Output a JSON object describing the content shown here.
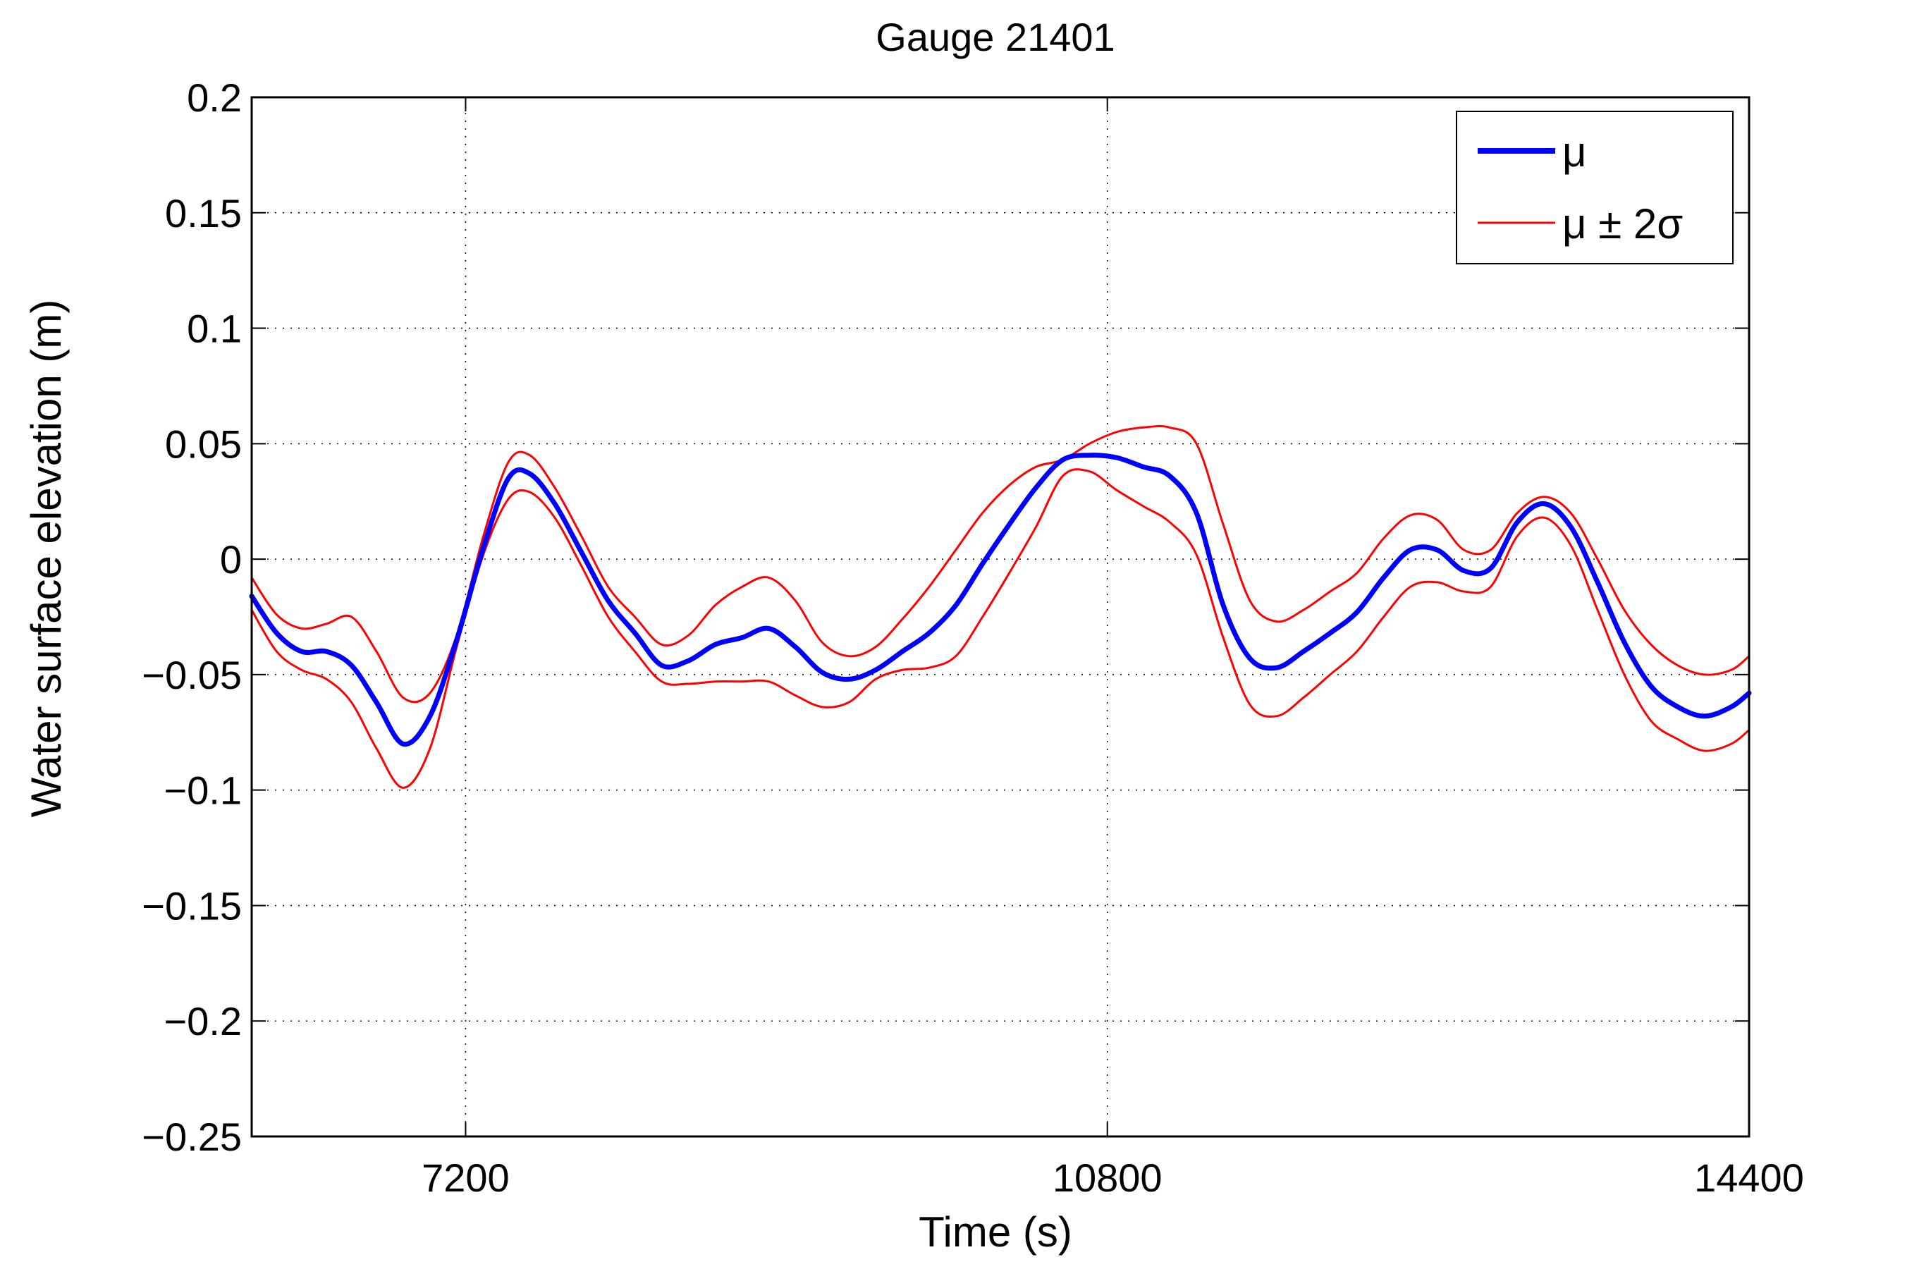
{
  "chart_data": {
    "type": "line",
    "title": "Gauge 21401",
    "xlabel": "Time (s)",
    "ylabel": "Water surface elevation (m)",
    "xlim": [
      6000,
      14400
    ],
    "ylim": [
      -0.25,
      0.2
    ],
    "xticks": [
      7200,
      10800,
      14400
    ],
    "xtick_labels": [
      "7200",
      "10800",
      "14400"
    ],
    "yticks": [
      0.2,
      0.15,
      0.1,
      0.05,
      0,
      -0.05,
      -0.1,
      -0.15,
      -0.2,
      -0.25
    ],
    "ytick_labels": [
      "0.2",
      "0.15",
      "0.1",
      "0.05",
      "0",
      "−0.05",
      "−0.1",
      "−0.15",
      "−0.2",
      "−0.25"
    ],
    "grid": true,
    "legend_position": "top-right",
    "series": [
      {
        "name": "μ",
        "color": "#0000ff",
        "style": "thick",
        "x": [
          6000,
          6140,
          6280,
          6420,
          6560,
          6700,
          6850,
          7000,
          7150,
          7300,
          7440,
          7560,
          7700,
          7850,
          8000,
          8150,
          8300,
          8450,
          8600,
          8750,
          8900,
          9050,
          9200,
          9350,
          9500,
          9650,
          9800,
          9950,
          10100,
          10250,
          10400,
          10550,
          10700,
          10850,
          11000,
          11150,
          11300,
          11450,
          11600,
          11750,
          11900,
          12050,
          12200,
          12350,
          12500,
          12650,
          12800,
          12950,
          13100,
          13250,
          13400,
          13550,
          13700,
          13850,
          14000,
          14150,
          14300,
          14400
        ],
        "y": [
          -0.016,
          -0.032,
          -0.04,
          -0.04,
          -0.046,
          -0.062,
          -0.08,
          -0.068,
          -0.035,
          0.005,
          0.035,
          0.037,
          0.024,
          0.003,
          -0.018,
          -0.032,
          -0.046,
          -0.044,
          -0.037,
          -0.034,
          -0.03,
          -0.038,
          -0.049,
          -0.052,
          -0.048,
          -0.04,
          -0.032,
          -0.02,
          -0.002,
          0.015,
          0.031,
          0.043,
          0.045,
          0.044,
          0.04,
          0.036,
          0.02,
          -0.02,
          -0.043,
          -0.047,
          -0.04,
          -0.032,
          -0.023,
          -0.008,
          0.004,
          0.004,
          -0.005,
          -0.004,
          0.016,
          0.024,
          0.014,
          -0.01,
          -0.036,
          -0.055,
          -0.064,
          -0.068,
          -0.064,
          -0.058
        ]
      },
      {
        "name": "μ ± 2σ",
        "color": "#ff0000",
        "style": "thin",
        "x": [
          6000,
          6140,
          6280,
          6420,
          6560,
          6700,
          6850,
          7000,
          7150,
          7300,
          7440,
          7560,
          7700,
          7850,
          8000,
          8150,
          8300,
          8450,
          8600,
          8750,
          8900,
          9050,
          9200,
          9350,
          9500,
          9650,
          9800,
          9950,
          10100,
          10250,
          10400,
          10550,
          10700,
          10850,
          11000,
          11150,
          11300,
          11450,
          11600,
          11750,
          11900,
          12050,
          12200,
          12350,
          12500,
          12650,
          12800,
          12950,
          13100,
          13250,
          13400,
          13550,
          13700,
          13850,
          14000,
          14150,
          14300,
          14400
        ],
        "y": [
          -0.008,
          -0.024,
          -0.03,
          -0.028,
          -0.025,
          -0.04,
          -0.06,
          -0.058,
          -0.033,
          0.01,
          0.042,
          0.045,
          0.031,
          0.01,
          -0.012,
          -0.025,
          -0.037,
          -0.033,
          -0.02,
          -0.012,
          -0.008,
          -0.018,
          -0.036,
          -0.042,
          -0.038,
          -0.026,
          -0.012,
          0.004,
          0.02,
          0.032,
          0.04,
          0.043,
          0.05,
          0.055,
          0.057,
          0.057,
          0.05,
          0.015,
          -0.018,
          -0.027,
          -0.022,
          -0.014,
          -0.006,
          0.009,
          0.019,
          0.017,
          0.004,
          0.004,
          0.02,
          0.027,
          0.02,
          0.0,
          -0.022,
          -0.037,
          -0.046,
          -0.05,
          -0.048,
          -0.042
        ]
      },
      {
        "name": "",
        "color": "#ff0000",
        "style": "thin",
        "x": [
          6000,
          6140,
          6280,
          6420,
          6560,
          6700,
          6850,
          7000,
          7150,
          7300,
          7440,
          7560,
          7700,
          7850,
          8000,
          8150,
          8300,
          8450,
          8600,
          8750,
          8900,
          9050,
          9200,
          9350,
          9500,
          9650,
          9800,
          9950,
          10100,
          10250,
          10400,
          10550,
          10700,
          10850,
          11000,
          11150,
          11300,
          11450,
          11600,
          11750,
          11900,
          12050,
          12200,
          12350,
          12500,
          12650,
          12800,
          12950,
          13100,
          13250,
          13400,
          13550,
          13700,
          13850,
          14000,
          14150,
          14300,
          14400
        ],
        "y": [
          -0.022,
          -0.04,
          -0.048,
          -0.052,
          -0.062,
          -0.082,
          -0.099,
          -0.082,
          -0.038,
          0.002,
          0.026,
          0.029,
          0.018,
          -0.003,
          -0.025,
          -0.04,
          -0.053,
          -0.054,
          -0.053,
          -0.053,
          -0.053,
          -0.059,
          -0.064,
          -0.062,
          -0.052,
          -0.048,
          -0.047,
          -0.042,
          -0.025,
          -0.006,
          0.014,
          0.036,
          0.038,
          0.03,
          0.023,
          0.016,
          0.002,
          -0.034,
          -0.063,
          -0.068,
          -0.06,
          -0.05,
          -0.04,
          -0.025,
          -0.012,
          -0.01,
          -0.014,
          -0.012,
          0.01,
          0.018,
          0.006,
          -0.022,
          -0.05,
          -0.07,
          -0.078,
          -0.083,
          -0.08,
          -0.074
        ]
      }
    ]
  }
}
